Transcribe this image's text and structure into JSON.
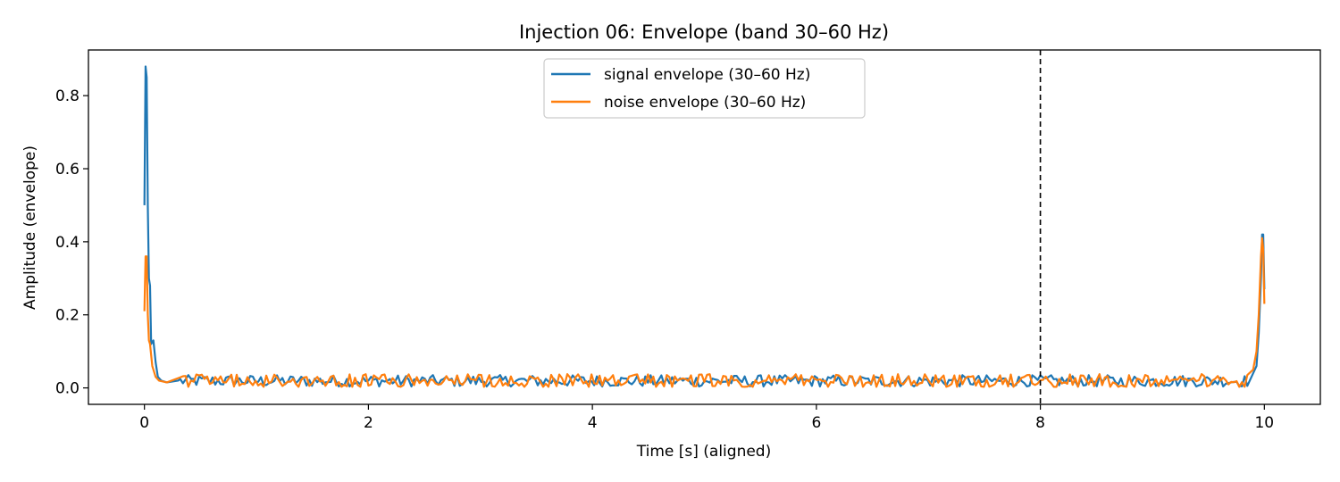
{
  "chart_data": {
    "type": "line",
    "title": "Injection 06: Envelope (band 30–60 Hz)",
    "xlabel": "Time [s] (aligned)",
    "ylabel": "Amplitude (envelope)",
    "xlim": [
      -0.5,
      10.5
    ],
    "ylim": [
      -0.045,
      0.925
    ],
    "xticks": [
      0,
      2,
      4,
      6,
      8,
      10
    ],
    "xtick_labels": [
      "0",
      "2",
      "4",
      "6",
      "8",
      "10"
    ],
    "yticks": [
      0.0,
      0.2,
      0.4,
      0.6,
      0.8
    ],
    "ytick_labels": [
      "0.0",
      "0.2",
      "0.4",
      "0.6",
      "0.8"
    ],
    "grid": false,
    "legend": "upper center",
    "vline": {
      "x": 8,
      "style": "dashed",
      "color": "#000000"
    },
    "noise_floor": {
      "signal": {
        "mean": 0.019,
        "range": [
          0.004,
          0.04
        ]
      },
      "noise": {
        "mean": 0.019,
        "range": [
          0.003,
          0.045
        ]
      }
    },
    "series": [
      {
        "name": "signal envelope (30–60 Hz)",
        "color": "#1f77b4",
        "x": [
          0.0,
          0.01,
          0.02,
          0.03,
          0.04,
          0.05,
          0.06,
          0.08,
          0.1,
          0.12,
          0.15,
          0.2,
          0.3,
          0.5,
          0.8,
          1.0,
          1.4,
          1.8,
          2.0,
          2.3,
          2.6,
          3.0,
          3.4,
          3.8,
          4.0,
          4.5,
          5.0,
          5.5,
          6.0,
          6.1,
          6.5,
          7.0,
          7.5,
          7.8,
          8.0,
          8.5,
          9.0,
          9.5,
          9.8,
          9.9,
          9.93,
          9.95,
          9.97,
          9.98,
          9.99,
          10.0
        ],
        "y": [
          0.5,
          0.88,
          0.85,
          0.5,
          0.3,
          0.28,
          0.12,
          0.13,
          0.07,
          0.03,
          0.02,
          0.015,
          0.02,
          0.015,
          0.02,
          0.018,
          0.035,
          0.02,
          0.018,
          0.04,
          0.015,
          0.022,
          0.035,
          0.02,
          0.025,
          0.018,
          0.02,
          0.022,
          0.025,
          0.032,
          0.02,
          0.015,
          0.018,
          0.028,
          0.01,
          0.018,
          0.02,
          0.015,
          0.02,
          0.04,
          0.06,
          0.15,
          0.3,
          0.42,
          0.42,
          0.27
        ]
      },
      {
        "name": "noise envelope (30–60 Hz)",
        "color": "#ff7f0e",
        "x": [
          0.0,
          0.01,
          0.02,
          0.03,
          0.04,
          0.05,
          0.07,
          0.1,
          0.13,
          0.2,
          0.4,
          0.8,
          1.0,
          1.4,
          1.75,
          2.0,
          2.3,
          2.6,
          3.0,
          3.4,
          3.8,
          4.0,
          4.5,
          5.0,
          5.5,
          6.0,
          6.5,
          7.0,
          7.5,
          8.0,
          8.5,
          8.9,
          9.3,
          9.7,
          9.85,
          9.9,
          9.93,
          9.95,
          9.97,
          9.98,
          9.99,
          10.0
        ],
        "y": [
          0.21,
          0.36,
          0.36,
          0.2,
          0.13,
          0.12,
          0.06,
          0.03,
          0.02,
          0.015,
          0.018,
          0.025,
          0.02,
          0.03,
          0.035,
          0.018,
          0.025,
          0.02,
          0.028,
          0.022,
          0.02,
          0.025,
          0.015,
          0.02,
          0.018,
          0.022,
          0.02,
          0.018,
          0.015,
          0.012,
          0.018,
          0.045,
          0.02,
          0.015,
          0.02,
          0.05,
          0.1,
          0.2,
          0.36,
          0.41,
          0.38,
          0.23
        ]
      }
    ]
  }
}
